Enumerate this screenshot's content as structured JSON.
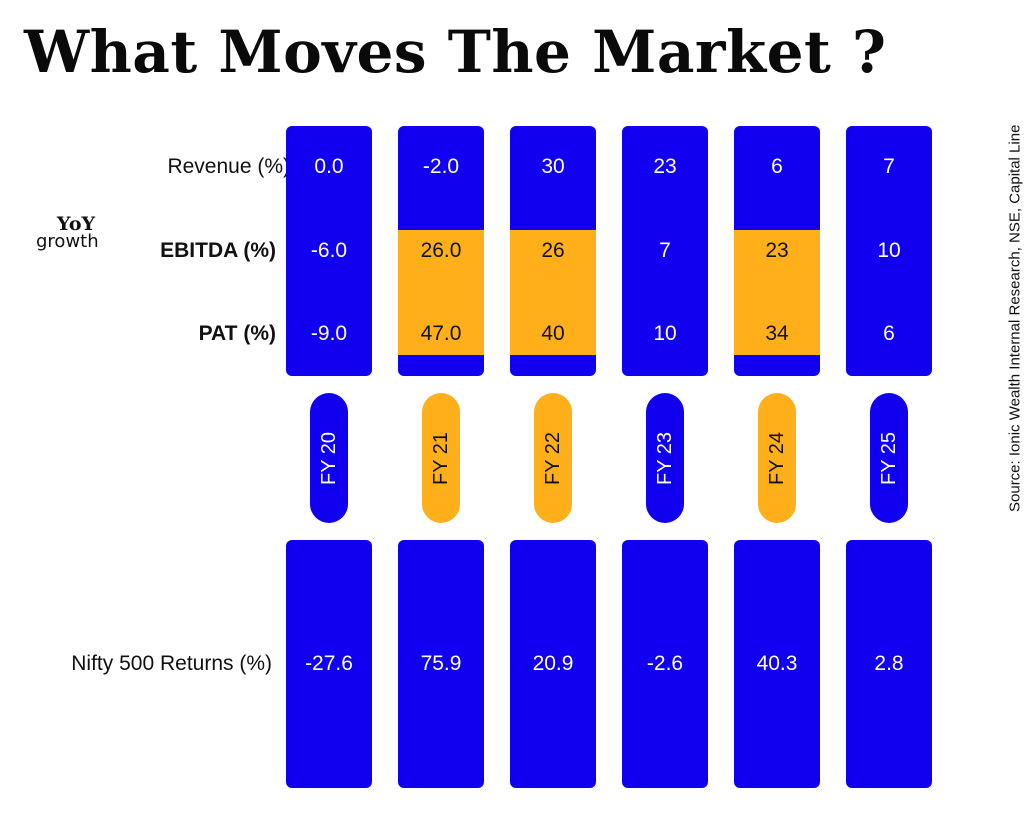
{
  "title": "What Moves The Market ?",
  "source": "Source: Ionic Wealth Internal Research, NSE, Capital Line",
  "yoy_label": [
    "YoY",
    "growth"
  ],
  "colors": {
    "blue": "#1100f0",
    "amber": "#ffaf1a"
  },
  "chart_data": {
    "type": "table",
    "title": "What Moves The Market ?",
    "categories": [
      "FY 20",
      "FY 21",
      "FY 22",
      "FY 23",
      "FY 24",
      "FY 25"
    ],
    "category_highlighted": [
      false,
      true,
      true,
      false,
      true,
      false
    ],
    "series": [
      {
        "name": "Revenue (%)",
        "values": [
          0.0,
          -2.0,
          30,
          23,
          6,
          7
        ],
        "display": [
          "0.0",
          "-2.0",
          "30",
          "23",
          "6",
          "7"
        ]
      },
      {
        "name": "EBITDA (%)",
        "values": [
          -6.0,
          26.0,
          26,
          7,
          23,
          10
        ],
        "display": [
          "-6.0",
          "26.0",
          "26",
          "7",
          "23",
          "10"
        ]
      },
      {
        "name": "PAT (%)",
        "values": [
          -9.0,
          47.0,
          40,
          10,
          34,
          6
        ],
        "display": [
          "-9.0",
          "47.0",
          "40",
          "10",
          "34",
          "6"
        ]
      },
      {
        "name": "Nifty 500 Returns (%)",
        "values": [
          -27.6,
          75.9,
          20.9,
          -2.6,
          40.3,
          2.8
        ],
        "display": [
          "-27.6",
          "75.9",
          "20.9",
          "-2.6",
          "40.3",
          "2.8"
        ]
      }
    ]
  }
}
